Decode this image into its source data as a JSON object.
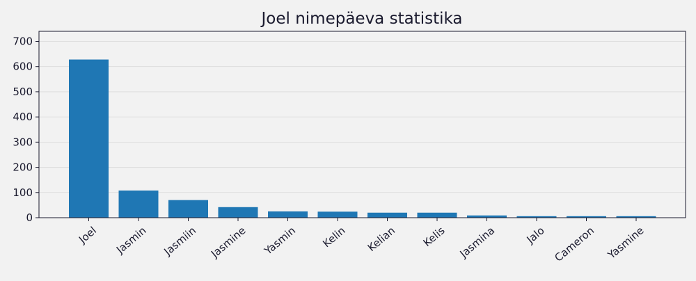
{
  "chart_data": {
    "type": "bar",
    "title": "Joel nimepäeva statistika",
    "xlabel": "",
    "ylabel": "",
    "categories": [
      "Joel",
      "Jasmin",
      "Jasmiin",
      "Jasmine",
      "Yasmin",
      "Kelin",
      "Kelian",
      "Kelis",
      "Jasmina",
      "Jalo",
      "Cameron",
      "Yasmine"
    ],
    "values": [
      628,
      108,
      70,
      42,
      25,
      24,
      20,
      20,
      9,
      6,
      6,
      6
    ],
    "ylim": [
      0,
      740
    ],
    "yticks": [
      0,
      100,
      200,
      300,
      400,
      500,
      600,
      700
    ],
    "grid": "horizontal",
    "colors": {
      "bar": "#1f77b4",
      "background": "#f2f2f2",
      "grid": "#d9d9d9",
      "axis": "#1a1a2e"
    }
  }
}
